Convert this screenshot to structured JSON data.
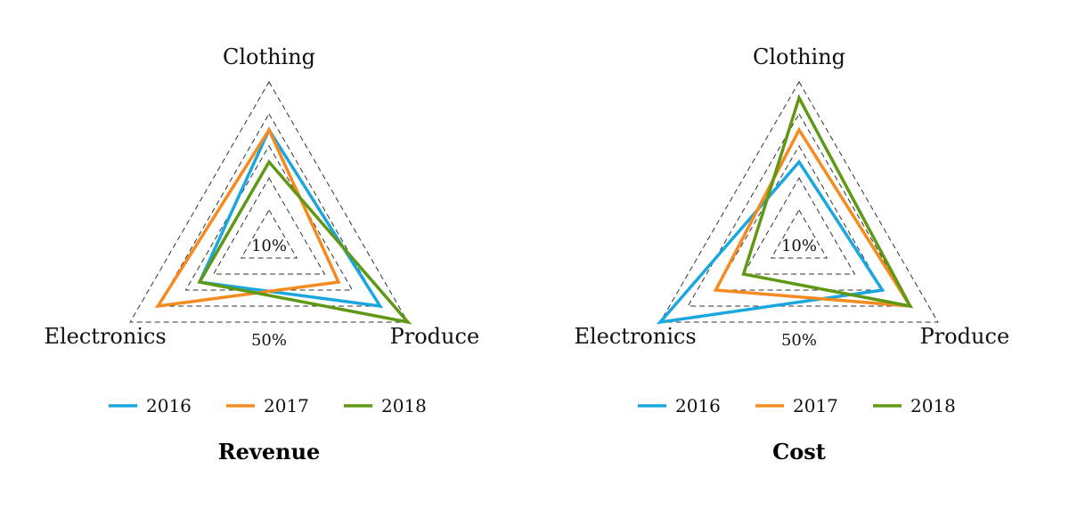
{
  "chart_data": [
    {
      "type": "radar",
      "title": "Revenue",
      "axes": [
        "Clothing",
        "Produce",
        "Electronics"
      ],
      "ring_labels": {
        "inner": "10%",
        "outer": "50%"
      },
      "rings": [
        10,
        20,
        30,
        40,
        50
      ],
      "series": [
        {
          "name": "2016",
          "values": [
            35,
            40,
            25
          ]
        },
        {
          "name": "2017",
          "values": [
            35,
            25,
            40
          ]
        },
        {
          "name": "2018",
          "values": [
            25,
            50,
            25
          ]
        }
      ],
      "colors": [
        "#1aa7e0",
        "#f58a1f",
        "#5f9814"
      ],
      "legend": "bottom"
    },
    {
      "type": "radar",
      "title": "Cost",
      "axes": [
        "Clothing",
        "Produce",
        "Electronics"
      ],
      "ring_labels": {
        "inner": "10%",
        "outer": "50%"
      },
      "rings": [
        10,
        20,
        30,
        40,
        50
      ],
      "series": [
        {
          "name": "2016",
          "values": [
            25,
            30,
            50
          ]
        },
        {
          "name": "2017",
          "values": [
            35,
            40,
            30
          ]
        },
        {
          "name": "2018",
          "values": [
            45,
            40,
            20
          ]
        }
      ],
      "colors": [
        "#1aa7e0",
        "#f58a1f",
        "#5f9814"
      ],
      "legend": "bottom"
    }
  ]
}
